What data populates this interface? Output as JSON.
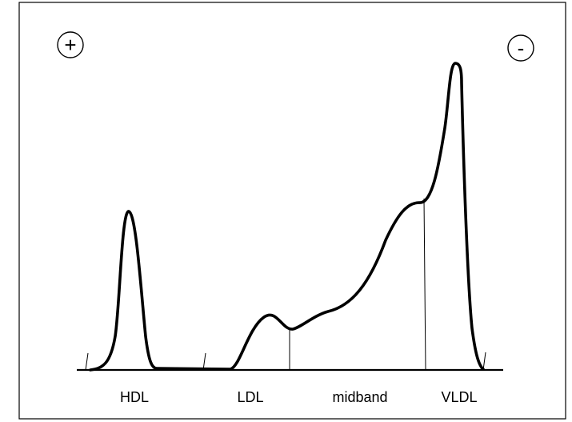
{
  "poles": {
    "positive": "+",
    "negative": "-"
  },
  "bands": [
    {
      "label": "HDL"
    },
    {
      "label": "LDL"
    },
    {
      "label": "midband"
    },
    {
      "label": "VLDL"
    }
  ]
}
